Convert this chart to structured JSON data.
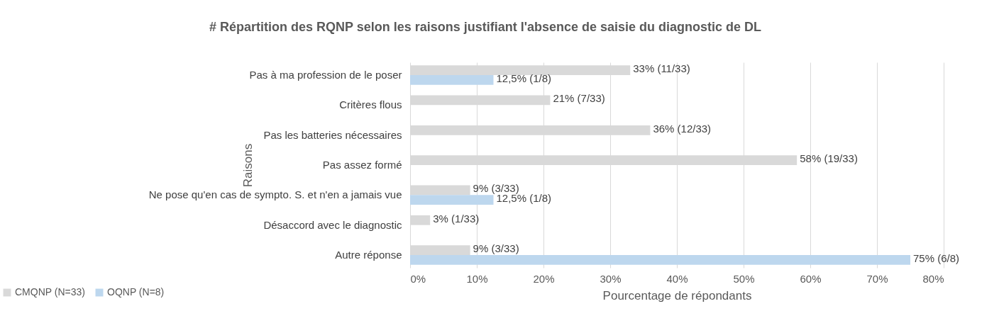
{
  "chart_data": {
    "type": "bar",
    "orientation": "horizontal",
    "title": "# Répartition des RQNP selon les raisons justifiant l'absence de saisie du diagnostic de DL",
    "xlabel": "Pourcentage de répondants",
    "ylabel": "Raisons",
    "categories": [
      "Pas à ma profession de le poser",
      "Critères flous",
      "Pas les batteries nécessaires",
      "Pas assez formé",
      "Ne pose qu'en cas de sympto. S. et n'en a jamais vue",
      "Désaccord avec le diagnostic",
      "Autre réponse"
    ],
    "series": [
      {
        "name": "CMQNP (N=33)",
        "color": "#d9d9d9",
        "values": [
          33,
          21,
          36,
          58,
          9,
          3,
          9
        ],
        "value_labels": [
          "33% (11/33)",
          "21% (7/33)",
          "36% (12/33)",
          "58% (19/33)",
          "9% (3/33)",
          "3% (1/33)",
          "9% (3/33)"
        ]
      },
      {
        "name": "OQNP (N=8)",
        "color": "#bdd7ee",
        "values": [
          12.5,
          null,
          null,
          null,
          12.5,
          null,
          75
        ],
        "value_labels": [
          "12,5% (1/8)",
          null,
          null,
          null,
          "12,5% (1/8)",
          null,
          "75% (6/8)"
        ]
      }
    ],
    "xlim": [
      0,
      80
    ],
    "xticks": [
      {
        "value": 0,
        "label": "0%"
      },
      {
        "value": 10,
        "label": "10%"
      },
      {
        "value": 20,
        "label": "20%"
      },
      {
        "value": 30,
        "label": "30%"
      },
      {
        "value": 40,
        "label": "40%"
      },
      {
        "value": 50,
        "label": "50%"
      },
      {
        "value": 60,
        "label": "60%"
      },
      {
        "value": 70,
        "label": "70%"
      },
      {
        "value": 80,
        "label": "80%"
      }
    ],
    "grid": "x",
    "legend": "bottom left"
  }
}
